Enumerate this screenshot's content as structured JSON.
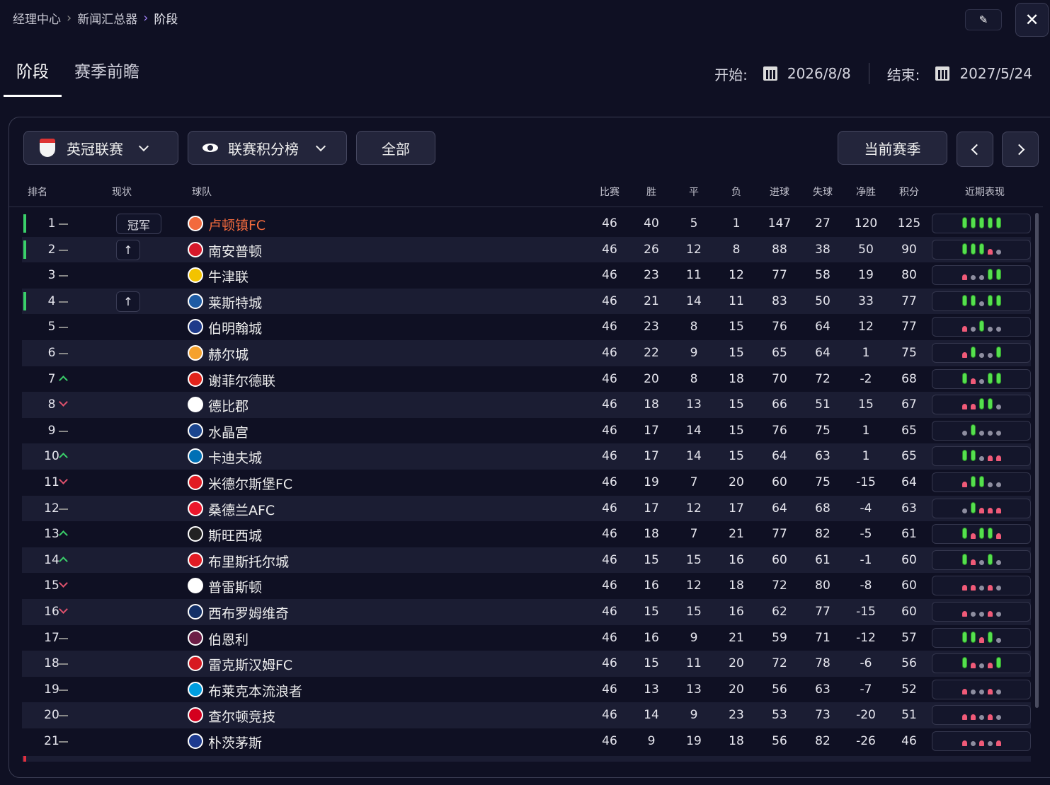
{
  "breadcrumb": [
    "经理中心",
    "新闻汇总器",
    "阶段"
  ],
  "tabs": [
    "阶段",
    "赛季前瞻"
  ],
  "dates": {
    "start_label": "开始:",
    "start": "2026/8/8",
    "end_label": "结束:",
    "end": "2027/5/24"
  },
  "toolbar": {
    "league": "英冠联赛",
    "view": "联赛积分榜",
    "filter": "全部",
    "current_season": "当前赛季"
  },
  "columns": {
    "rank": "排名",
    "status": "现状",
    "team": "球队",
    "played": "比赛",
    "won": "胜",
    "drawn": "平",
    "lost": "负",
    "gf": "进球",
    "ga": "失球",
    "gd": "净胜",
    "pts": "积分",
    "form": "近期表现"
  },
  "colors": {
    "win": "#55e04e",
    "loss": "#f05a78",
    "draw": "#8e8ea0",
    "highlight_team": "#f26a3d",
    "promotion": "#3ad06a"
  },
  "rows": [
    {
      "rank": "1",
      "trend": "same",
      "status": "冠军",
      "team": "卢顿镇FC",
      "p": "46",
      "w": "40",
      "d": "5",
      "l": "1",
      "gf": "147",
      "ga": "27",
      "gd": "120",
      "pts": "125",
      "form": "WWWWW",
      "accent": true,
      "highlight": true,
      "crest": "#f26a3d"
    },
    {
      "rank": "2",
      "trend": "same",
      "status": "↑",
      "team": "南安普顿",
      "p": "46",
      "w": "26",
      "d": "12",
      "l": "8",
      "gf": "88",
      "ga": "38",
      "gd": "50",
      "pts": "90",
      "form": "WWWLD",
      "accent": true,
      "crest": "#d7182a"
    },
    {
      "rank": "3",
      "trend": "same",
      "team": "牛津联",
      "p": "46",
      "w": "23",
      "d": "11",
      "l": "12",
      "gf": "77",
      "ga": "58",
      "gd": "19",
      "pts": "80",
      "form": "LDDWW",
      "crest": "#f3c300"
    },
    {
      "rank": "4",
      "trend": "same",
      "status": "↑",
      "team": "莱斯特城",
      "p": "46",
      "w": "21",
      "d": "14",
      "l": "11",
      "gf": "83",
      "ga": "50",
      "gd": "33",
      "pts": "77",
      "form": "WWDWW",
      "accent": true,
      "crest": "#1d5ba4"
    },
    {
      "rank": "5",
      "trend": "same",
      "team": "伯明翰城",
      "p": "46",
      "w": "23",
      "d": "8",
      "l": "15",
      "gf": "76",
      "ga": "64",
      "gd": "12",
      "pts": "77",
      "form": "LDWDD",
      "crest": "#1e3a8a"
    },
    {
      "rank": "6",
      "trend": "same",
      "team": "赫尔城",
      "p": "46",
      "w": "22",
      "d": "9",
      "l": "15",
      "gf": "65",
      "ga": "64",
      "gd": "1",
      "pts": "75",
      "form": "LWDDW",
      "crest": "#f5a12d"
    },
    {
      "rank": "7",
      "trend": "up",
      "team": "谢菲尔德联",
      "p": "46",
      "w": "20",
      "d": "8",
      "l": "18",
      "gf": "70",
      "ga": "72",
      "gd": "-2",
      "pts": "68",
      "form": "WLDWW",
      "crest": "#e2231a"
    },
    {
      "rank": "8",
      "trend": "down",
      "team": "德比郡",
      "p": "46",
      "w": "18",
      "d": "13",
      "l": "15",
      "gf": "66",
      "ga": "51",
      "gd": "15",
      "pts": "67",
      "form": "LLWWD",
      "crest": "#ffffff"
    },
    {
      "rank": "9",
      "trend": "same",
      "team": "水晶宫",
      "p": "46",
      "w": "17",
      "d": "14",
      "l": "15",
      "gf": "76",
      "ga": "75",
      "gd": "1",
      "pts": "65",
      "form": "DWDDD",
      "crest": "#1b458f"
    },
    {
      "rank": "10",
      "trend": "up",
      "team": "卡迪夫城",
      "p": "46",
      "w": "17",
      "d": "14",
      "l": "15",
      "gf": "64",
      "ga": "63",
      "gd": "1",
      "pts": "65",
      "form": "WWDLL",
      "crest": "#0070b5"
    },
    {
      "rank": "11",
      "trend": "down",
      "team": "米德尔斯堡FC",
      "p": "46",
      "w": "19",
      "d": "7",
      "l": "20",
      "gf": "60",
      "ga": "75",
      "gd": "-15",
      "pts": "64",
      "form": "LWWDD",
      "crest": "#e11b22"
    },
    {
      "rank": "12",
      "trend": "same",
      "team": "桑德兰AFC",
      "p": "46",
      "w": "17",
      "d": "12",
      "l": "17",
      "gf": "64",
      "ga": "68",
      "gd": "-4",
      "pts": "63",
      "form": "DWLLL",
      "crest": "#eb172b"
    },
    {
      "rank": "13",
      "trend": "up",
      "team": "斯旺西城",
      "p": "46",
      "w": "18",
      "d": "7",
      "l": "21",
      "gf": "77",
      "ga": "82",
      "gd": "-5",
      "pts": "61",
      "form": "WLWWL",
      "crest": "#222222"
    },
    {
      "rank": "14",
      "trend": "up",
      "team": "布里斯托尔城",
      "p": "46",
      "w": "15",
      "d": "15",
      "l": "16",
      "gf": "60",
      "ga": "61",
      "gd": "-1",
      "pts": "60",
      "form": "WLDWD",
      "crest": "#e21b23"
    },
    {
      "rank": "15",
      "trend": "down",
      "team": "普雷斯顿",
      "p": "46",
      "w": "16",
      "d": "12",
      "l": "18",
      "gf": "72",
      "ga": "80",
      "gd": "-8",
      "pts": "60",
      "form": "LLDLD",
      "crest": "#ffffff"
    },
    {
      "rank": "16",
      "trend": "down",
      "team": "西布罗姆维奇",
      "p": "46",
      "w": "15",
      "d": "15",
      "l": "16",
      "gf": "62",
      "ga": "77",
      "gd": "-15",
      "pts": "60",
      "form": "LDDLD",
      "crest": "#122f67"
    },
    {
      "rank": "17",
      "trend": "same",
      "team": "伯恩利",
      "p": "46",
      "w": "16",
      "d": "9",
      "l": "21",
      "gf": "59",
      "ga": "71",
      "gd": "-12",
      "pts": "57",
      "form": "WWLWD",
      "crest": "#6c1d45"
    },
    {
      "rank": "18",
      "trend": "same",
      "team": "雷克斯汉姆FC",
      "p": "46",
      "w": "15",
      "d": "11",
      "l": "20",
      "gf": "72",
      "ga": "78",
      "gd": "-6",
      "pts": "56",
      "form": "WLDLW",
      "crest": "#d71920"
    },
    {
      "rank": "19",
      "trend": "same",
      "team": "布莱克本流浪者",
      "p": "46",
      "w": "13",
      "d": "13",
      "l": "20",
      "gf": "56",
      "ga": "63",
      "gd": "-7",
      "pts": "52",
      "form": "LDDLD",
      "crest": "#009ee0"
    },
    {
      "rank": "20",
      "trend": "same",
      "team": "查尔顿竞技",
      "p": "46",
      "w": "14",
      "d": "9",
      "l": "23",
      "gf": "53",
      "ga": "73",
      "gd": "-20",
      "pts": "51",
      "form": "LLDLD",
      "crest": "#d4001e"
    },
    {
      "rank": "21",
      "trend": "same",
      "team": "朴茨茅斯",
      "p": "46",
      "w": "9",
      "d": "19",
      "l": "18",
      "gf": "56",
      "ga": "82",
      "gd": "-26",
      "pts": "46",
      "form": "LDLDL",
      "crest": "#1d3a8f"
    }
  ]
}
